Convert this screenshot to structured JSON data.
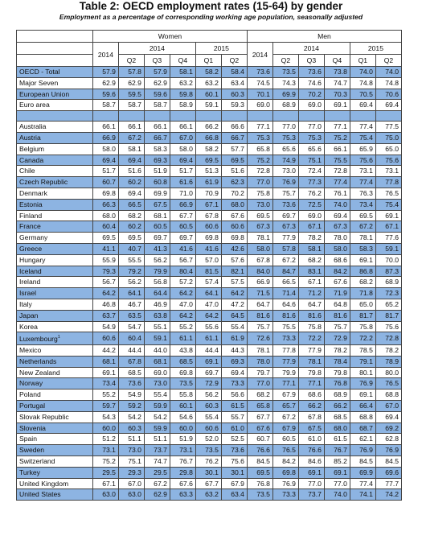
{
  "title": "Table 2: OECD employment rates (15-64) by gender",
  "subtitle": "Employment as a percentage of corresponding working age population, seasonally adjusted",
  "groups": {
    "women": "Women",
    "men": "Men"
  },
  "periods": {
    "y2014": "2014",
    "y2015": "2015",
    "q1": "Q1",
    "q2": "Q2",
    "q3": "Q3",
    "q4": "Q4"
  },
  "aggregates": [
    {
      "name": "OECD - Total",
      "w": [
        "57.9",
        "57.8",
        "57.9",
        "58.1",
        "58.2",
        "58.4"
      ],
      "m": [
        "73.6",
        "73.5",
        "73.6",
        "73.8",
        "74.0",
        "74.0"
      ]
    },
    {
      "name": "Major Seven",
      "w": [
        "62.9",
        "62.9",
        "62.9",
        "63.2",
        "63.2",
        "63.4"
      ],
      "m": [
        "74.5",
        "74.3",
        "74.6",
        "74.7",
        "74.8",
        "74.8"
      ]
    },
    {
      "name": "European Union",
      "w": [
        "59.6",
        "59.5",
        "59.6",
        "59.8",
        "60.1",
        "60.3"
      ],
      "m": [
        "70.1",
        "69.9",
        "70.2",
        "70.3",
        "70.5",
        "70.6"
      ]
    },
    {
      "name": "Euro area",
      "w": [
        "58.7",
        "58.7",
        "58.7",
        "58.9",
        "59.1",
        "59.3"
      ],
      "m": [
        "69.0",
        "68.9",
        "69.0",
        "69.1",
        "69.4",
        "69.4"
      ]
    }
  ],
  "countries": [
    {
      "name": "Australia",
      "w": [
        "66.1",
        "66.1",
        "66.1",
        "66.1",
        "66.2",
        "66.6"
      ],
      "m": [
        "77.1",
        "77.0",
        "77.0",
        "77.1",
        "77.4",
        "77.5"
      ]
    },
    {
      "name": "Austria",
      "w": [
        "66.9",
        "67.2",
        "66.7",
        "67.0",
        "66.8",
        "66.7"
      ],
      "m": [
        "75.3",
        "75.3",
        "75.3",
        "75.2",
        "75.4",
        "75.0"
      ]
    },
    {
      "name": "Belgium",
      "w": [
        "58.0",
        "58.1",
        "58.3",
        "58.0",
        "58.2",
        "57.7"
      ],
      "m": [
        "65.8",
        "65.6",
        "65.6",
        "66.1",
        "65.9",
        "65.0"
      ]
    },
    {
      "name": "Canada",
      "w": [
        "69.4",
        "69.4",
        "69.3",
        "69.4",
        "69.5",
        "69.5"
      ],
      "m": [
        "75.2",
        "74.9",
        "75.1",
        "75.5",
        "75.6",
        "75.6"
      ]
    },
    {
      "name": "Chile",
      "w": [
        "51.7",
        "51.6",
        "51.9",
        "51.7",
        "51.3",
        "51.6"
      ],
      "m": [
        "72.8",
        "73.0",
        "72.4",
        "72.8",
        "73.1",
        "73.1"
      ]
    },
    {
      "name": "Czech Republic",
      "w": [
        "60.7",
        "60.2",
        "60.8",
        "61.6",
        "61.9",
        "62.3"
      ],
      "m": [
        "77.0",
        "76.9",
        "77.3",
        "77.4",
        "77.4",
        "77.8"
      ]
    },
    {
      "name": "Denmark",
      "w": [
        "69.8",
        "69.4",
        "69.9",
        "71.0",
        "70.9",
        "70.2"
      ],
      "m": [
        "75.8",
        "75.7",
        "76.2",
        "76.1",
        "76.3",
        "76.5"
      ]
    },
    {
      "name": "Estonia",
      "w": [
        "66.3",
        "66.5",
        "67.5",
        "66.9",
        "67.1",
        "68.0"
      ],
      "m": [
        "73.0",
        "73.6",
        "72.5",
        "74.0",
        "73.4",
        "75.4"
      ]
    },
    {
      "name": "Finland",
      "w": [
        "68.0",
        "68.2",
        "68.1",
        "67.7",
        "67.8",
        "67.6"
      ],
      "m": [
        "69.5",
        "69.7",
        "69.0",
        "69.4",
        "69.5",
        "69.1"
      ]
    },
    {
      "name": "France",
      "w": [
        "60.4",
        "60.2",
        "60.5",
        "60.5",
        "60.6",
        "60.6"
      ],
      "m": [
        "67.3",
        "67.3",
        "67.1",
        "67.3",
        "67.2",
        "67.1"
      ]
    },
    {
      "name": "Germany",
      "w": [
        "69.5",
        "69.5",
        "69.7",
        "69.7",
        "69.8",
        "69.8"
      ],
      "m": [
        "78.1",
        "77.9",
        "78.2",
        "78.0",
        "78.1",
        "77.6"
      ]
    },
    {
      "name": "Greece",
      "w": [
        "41.1",
        "40.7",
        "41.3",
        "41.6",
        "41.6",
        "42.6"
      ],
      "m": [
        "58.0",
        "57.8",
        "58.1",
        "58.0",
        "58.3",
        "59.1"
      ]
    },
    {
      "name": "Hungary",
      "w": [
        "55.9",
        "55.5",
        "56.2",
        "56.7",
        "57.0",
        "57.6"
      ],
      "m": [
        "67.8",
        "67.2",
        "68.2",
        "68.6",
        "69.1",
        "70.0"
      ]
    },
    {
      "name": "Iceland",
      "w": [
        "79.3",
        "79.2",
        "79.9",
        "80.4",
        "81.5",
        "82.1"
      ],
      "m": [
        "84.0",
        "84.7",
        "83.1",
        "84.2",
        "86.8",
        "87.3"
      ]
    },
    {
      "name": "Ireland",
      "w": [
        "56.7",
        "56.2",
        "56.8",
        "57.2",
        "57.4",
        "57.5"
      ],
      "m": [
        "66.9",
        "66.5",
        "67.1",
        "67.6",
        "68.2",
        "68.9"
      ]
    },
    {
      "name": "Israel",
      "w": [
        "64.2",
        "64.1",
        "64.4",
        "64.2",
        "64.1",
        "64.2"
      ],
      "m": [
        "71.5",
        "71.4",
        "71.2",
        "71.9",
        "71.8",
        "72.3"
      ]
    },
    {
      "name": "Italy",
      "w": [
        "46.8",
        "46.7",
        "46.9",
        "47.0",
        "47.0",
        "47.2"
      ],
      "m": [
        "64.7",
        "64.6",
        "64.7",
        "64.8",
        "65.0",
        "65.2"
      ]
    },
    {
      "name": "Japan",
      "w": [
        "63.7",
        "63.5",
        "63.8",
        "64.2",
        "64.2",
        "64.5"
      ],
      "m": [
        "81.6",
        "81.6",
        "81.6",
        "81.6",
        "81.7",
        "81.7"
      ]
    },
    {
      "name": "Korea",
      "w": [
        "54.9",
        "54.7",
        "55.1",
        "55.2",
        "55.6",
        "55.4"
      ],
      "m": [
        "75.7",
        "75.5",
        "75.8",
        "75.7",
        "75.8",
        "75.6"
      ]
    },
    {
      "name": "Luxembourg",
      "sup": "1",
      "w": [
        "60.6",
        "60.4",
        "59.1",
        "61.1",
        "61.1",
        "61.9"
      ],
      "m": [
        "72.6",
        "73.3",
        "72.2",
        "72.9",
        "72.2",
        "72.8"
      ]
    },
    {
      "name": "Mexico",
      "w": [
        "44.2",
        "44.4",
        "44.0",
        "43.8",
        "44.4",
        "44.3"
      ],
      "m": [
        "78.1",
        "77.8",
        "77.9",
        "78.2",
        "78.5",
        "78.2"
      ]
    },
    {
      "name": "Netherlands",
      "w": [
        "68.1",
        "67.8",
        "68.1",
        "68.5",
        "69.1",
        "69.3"
      ],
      "m": [
        "78.0",
        "77.9",
        "78.1",
        "78.4",
        "79.1",
        "78.9"
      ]
    },
    {
      "name": "New Zealand",
      "w": [
        "69.1",
        "68.5",
        "69.0",
        "69.8",
        "69.7",
        "69.4"
      ],
      "m": [
        "79.7",
        "79.9",
        "79.8",
        "79.8",
        "80.1",
        "80.0"
      ]
    },
    {
      "name": "Norway",
      "w": [
        "73.4",
        "73.6",
        "73.0",
        "73.5",
        "72.9",
        "73.3"
      ],
      "m": [
        "77.0",
        "77.1",
        "77.1",
        "76.8",
        "76.9",
        "76.5"
      ]
    },
    {
      "name": "Poland",
      "w": [
        "55.2",
        "54.9",
        "55.4",
        "55.8",
        "56.2",
        "56.6"
      ],
      "m": [
        "68.2",
        "67.9",
        "68.6",
        "68.9",
        "69.1",
        "68.8"
      ]
    },
    {
      "name": "Portugal",
      "w": [
        "59.7",
        "59.2",
        "59.9",
        "60.1",
        "60.3",
        "61.5"
      ],
      "m": [
        "65.8",
        "65.7",
        "66.2",
        "66.2",
        "66.4",
        "67.0"
      ]
    },
    {
      "name": "Slovak Republic",
      "w": [
        "54.3",
        "54.2",
        "54.2",
        "54.6",
        "55.4",
        "55.7"
      ],
      "m": [
        "67.7",
        "67.2",
        "67.8",
        "68.5",
        "68.8",
        "69.4"
      ]
    },
    {
      "name": "Slovenia",
      "w": [
        "60.0",
        "60.3",
        "59.9",
        "60.0",
        "60.6",
        "61.0"
      ],
      "m": [
        "67.6",
        "67.9",
        "67.5",
        "68.0",
        "68.7",
        "69.2"
      ]
    },
    {
      "name": "Spain",
      "w": [
        "51.2",
        "51.1",
        "51.1",
        "51.9",
        "52.0",
        "52.5"
      ],
      "m": [
        "60.7",
        "60.5",
        "61.0",
        "61.5",
        "62.1",
        "62.8"
      ]
    },
    {
      "name": "Sweden",
      "w": [
        "73.1",
        "73.0",
        "73.7",
        "73.1",
        "73.5",
        "73.6"
      ],
      "m": [
        "76.6",
        "76.5",
        "76.6",
        "76.7",
        "76.9",
        "76.9"
      ]
    },
    {
      "name": "Switzerland",
      "w": [
        "75.2",
        "75.1",
        "74.7",
        "76.7",
        "76.2",
        "75.6"
      ],
      "m": [
        "84.5",
        "84.2",
        "84.6",
        "85.2",
        "84.5",
        "84.5"
      ]
    },
    {
      "name": "Turkey",
      "w": [
        "29.5",
        "29.3",
        "29.5",
        "29.8",
        "30.1",
        "30.1"
      ],
      "m": [
        "69.5",
        "69.8",
        "69.1",
        "69.1",
        "69.9",
        "69.6"
      ]
    },
    {
      "name": "United Kingdom",
      "w": [
        "67.1",
        "67.0",
        "67.2",
        "67.6",
        "67.7",
        "67.9"
      ],
      "m": [
        "76.8",
        "76.9",
        "77.0",
        "77.0",
        "77.4",
        "77.7"
      ]
    },
    {
      "name": "United States",
      "w": [
        "63.0",
        "63.0",
        "62.9",
        "63.3",
        "63.2",
        "63.4"
      ],
      "m": [
        "73.5",
        "73.3",
        "73.7",
        "74.0",
        "74.1",
        "74.2"
      ]
    }
  ]
}
